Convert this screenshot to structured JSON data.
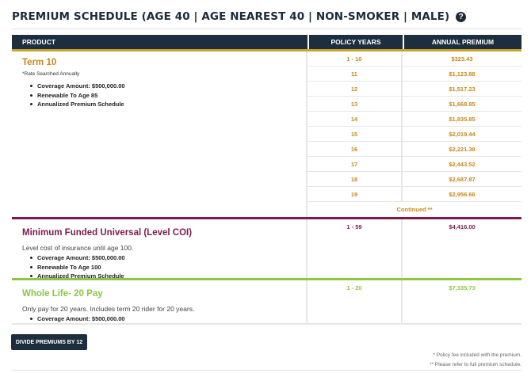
{
  "header": {
    "title": "PREMIUM SCHEDULE (AGE 40 | AGE NEAREST 40 | NON-SMOKER | MALE)",
    "help_icon": "?"
  },
  "table": {
    "columns": {
      "product": "PRODUCT",
      "years": "POLICY YEARS",
      "premium": "ANNUAL PREMIUM"
    },
    "products": [
      {
        "name": "Term 10",
        "note": "*Rate Searched Annually",
        "description": "",
        "color": "#c9881a",
        "bullets": [
          "Coverage Amount: $500,000.00",
          "Renewable To Age 85",
          "Annualized Premium Schedule"
        ],
        "rows": [
          {
            "years": "1 - 10",
            "premium": "$323.43"
          },
          {
            "years": "11",
            "premium": "$1,123.88"
          },
          {
            "years": "12",
            "premium": "$1,517.23"
          },
          {
            "years": "13",
            "premium": "$1,668.95"
          },
          {
            "years": "14",
            "premium": "$1,835.85"
          },
          {
            "years": "15",
            "premium": "$2,019.44"
          },
          {
            "years": "16",
            "premium": "$2,221.38"
          },
          {
            "years": "17",
            "premium": "$2,443.52"
          },
          {
            "years": "18",
            "premium": "$2,687.87"
          },
          {
            "years": "19",
            "premium": "$2,956.66"
          }
        ],
        "continued": "Continued **"
      },
      {
        "name": "Minimum Funded Universal (Level COI)",
        "description": "Level cost of insurance until age 100.",
        "color": "#7d1a4f",
        "bullets": [
          "Coverage Amount: $500,000.00",
          "Renewable To Age 100",
          "Annualized Premium Schedule"
        ],
        "rows": [
          {
            "years": "1 - 59",
            "premium": "$4,416.00"
          }
        ]
      },
      {
        "name": "Whole Life- 20 Pay",
        "description": "Only pay for 20 years. Includes term 20 rider for 20 years.",
        "color": "#8dc63f",
        "bullets": [
          "Coverage Amount: $500,000.00"
        ],
        "rows": [
          {
            "years": "1 - 20",
            "premium": "$7,335.73"
          }
        ]
      }
    ]
  },
  "actions": {
    "divide_button": "DIVIDE PREMIUMS BY 12"
  },
  "footnotes": [
    "* Policy fee included with the premium.",
    "** Please refer to full premium schedule."
  ]
}
